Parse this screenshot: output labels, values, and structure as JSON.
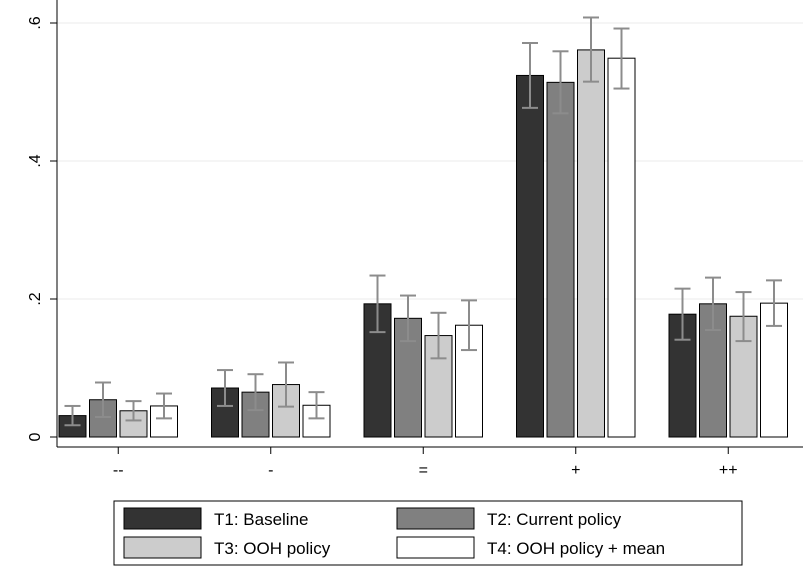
{
  "chart_data": {
    "type": "bar",
    "categories": [
      "--",
      "-",
      "=",
      "+",
      "++"
    ],
    "series": [
      {
        "name": "T1: Baseline",
        "color": "#333333",
        "values": [
          0.031,
          0.071,
          0.193,
          0.524,
          0.178
        ],
        "ci": [
          [
            0.017,
            0.045
          ],
          [
            0.045,
            0.097
          ],
          [
            0.152,
            0.234
          ],
          [
            0.477,
            0.571
          ],
          [
            0.141,
            0.215
          ]
        ]
      },
      {
        "name": "T2: Current policy",
        "color": "#808080",
        "values": [
          0.054,
          0.065,
          0.172,
          0.514,
          0.193
        ],
        "ci": [
          [
            0.029,
            0.079
          ],
          [
            0.039,
            0.091
          ],
          [
            0.139,
            0.205
          ],
          [
            0.469,
            0.559
          ],
          [
            0.155,
            0.231
          ]
        ]
      },
      {
        "name": "T3: OOH policy",
        "color": "#cccccc",
        "values": [
          0.038,
          0.076,
          0.147,
          0.561,
          0.175
        ],
        "ci": [
          [
            0.024,
            0.052
          ],
          [
            0.044,
            0.108
          ],
          [
            0.114,
            0.18
          ],
          [
            0.515,
            0.608
          ],
          [
            0.139,
            0.21
          ]
        ]
      },
      {
        "name": "T4: OOH policy + mean",
        "color": "#ffffff",
        "values": [
          0.045,
          0.046,
          0.162,
          0.549,
          0.194
        ],
        "ci": [
          [
            0.027,
            0.063
          ],
          [
            0.027,
            0.065
          ],
          [
            0.126,
            0.198
          ],
          [
            0.505,
            0.592
          ],
          [
            0.161,
            0.227
          ]
        ]
      }
    ],
    "yticks": [
      0,
      0.2,
      0.4,
      0.6
    ],
    "ytick_labels": [
      "0",
      ".2",
      ".4",
      ".6"
    ],
    "ylim": [
      0,
      0.62
    ],
    "grid": true,
    "legend_position": "bottom"
  }
}
